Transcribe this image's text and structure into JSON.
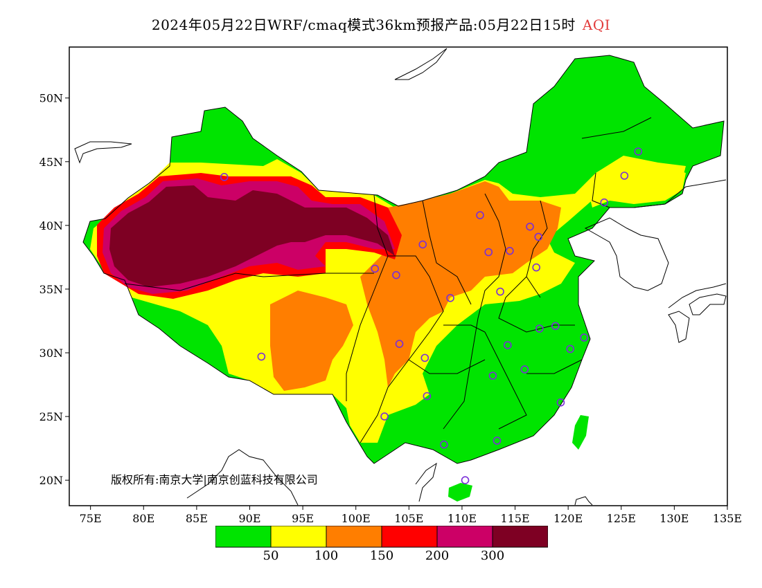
{
  "title": {
    "main": "2024年05月22日WRF/cmaq模式36km预报产品:05月22日15时",
    "variable": "AQI"
  },
  "axes": {
    "lon_ticks": [
      "75E",
      "80E",
      "85E",
      "90E",
      "95E",
      "100E",
      "105E",
      "110E",
      "115E",
      "120E",
      "125E",
      "130E",
      "135E"
    ],
    "lat_ticks": [
      "20N",
      "25N",
      "30N",
      "35N",
      "40N",
      "45N",
      "50N"
    ],
    "lon_range": [
      73,
      135
    ],
    "lat_range": [
      18,
      54
    ]
  },
  "copyright": "版权所有:南京大学|南京创蓝科技有限公司",
  "legend": {
    "colors": [
      "#00e400",
      "#ffff00",
      "#ff7e00",
      "#ff0000",
      "#cc0066",
      "#7e0023"
    ],
    "labels": [
      "50",
      "100",
      "150",
      "200",
      "300"
    ]
  },
  "cities": [
    {
      "lon": 87.6,
      "lat": 43.8
    },
    {
      "lon": 91.1,
      "lat": 29.7
    },
    {
      "lon": 101.8,
      "lat": 36.6
    },
    {
      "lon": 103.8,
      "lat": 36.1
    },
    {
      "lon": 106.3,
      "lat": 38.5
    },
    {
      "lon": 111.7,
      "lat": 40.8
    },
    {
      "lon": 116.4,
      "lat": 39.9
    },
    {
      "lon": 117.2,
      "lat": 39.1
    },
    {
      "lon": 114.5,
      "lat": 38.0
    },
    {
      "lon": 112.5,
      "lat": 37.9
    },
    {
      "lon": 117.0,
      "lat": 36.7
    },
    {
      "lon": 113.6,
      "lat": 34.8
    },
    {
      "lon": 108.9,
      "lat": 34.3
    },
    {
      "lon": 104.1,
      "lat": 30.7
    },
    {
      "lon": 106.5,
      "lat": 29.6
    },
    {
      "lon": 106.7,
      "lat": 26.6
    },
    {
      "lon": 102.7,
      "lat": 25.0
    },
    {
      "lon": 108.3,
      "lat": 22.8
    },
    {
      "lon": 113.3,
      "lat": 23.1
    },
    {
      "lon": 110.3,
      "lat": 20.0
    },
    {
      "lon": 112.9,
      "lat": 28.2
    },
    {
      "lon": 114.3,
      "lat": 30.6
    },
    {
      "lon": 115.9,
      "lat": 28.7
    },
    {
      "lon": 117.3,
      "lat": 31.9
    },
    {
      "lon": 118.8,
      "lat": 32.1
    },
    {
      "lon": 120.2,
      "lat": 30.3
    },
    {
      "lon": 121.5,
      "lat": 31.2
    },
    {
      "lon": 119.3,
      "lat": 26.1
    },
    {
      "lon": 123.4,
      "lat": 41.8
    },
    {
      "lon": 125.3,
      "lat": 43.9
    },
    {
      "lon": 126.6,
      "lat": 45.8
    }
  ]
}
